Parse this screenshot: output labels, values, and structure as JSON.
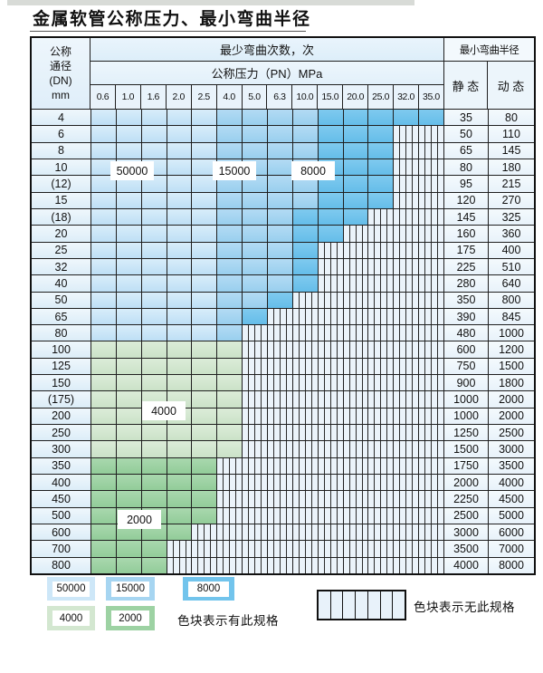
{
  "title": "金属软管公称压力、最小弯曲半径",
  "table": {
    "header": {
      "dn_label_lines": [
        "公称",
        "通径",
        "(DN)",
        "mm"
      ],
      "bend_cycles_label": "最少弯曲次数，次",
      "pressure_label": "公称压力（PN）MPa",
      "pressures": [
        "0.6",
        "1.0",
        "1.6",
        "2.0",
        "2.5",
        "4.0",
        "5.0",
        "6.3",
        "10.0",
        "15.0",
        "20.0",
        "25.0",
        "32.0",
        "35.0"
      ],
      "radius_label": "最小弯曲半径",
      "static_label": "静 态",
      "dynamic_label": "动 态"
    },
    "cell_legend_note": "L=50000 cycles, M=15000 cycles, D=8000 cycles, A=4000 cycles, B=2000 cycles, S=no specification (striped)",
    "rows": [
      {
        "dn": "4",
        "cells": "LLLLLMMMMDDDDD",
        "static": "35",
        "dynamic": "80"
      },
      {
        "dn": "6",
        "cells": "LLLLLMMMMDDDSS",
        "static": "50",
        "dynamic": "110"
      },
      {
        "dn": "8",
        "cells": "LLLLLMMMMDDDSS",
        "static": "65",
        "dynamic": "145"
      },
      {
        "dn": "10",
        "cells": "LLLLLMMMMDDDSS",
        "static": "80",
        "dynamic": "180"
      },
      {
        "dn": "(12)",
        "cells": "LLLLLMMMMDDDSS",
        "static": "95",
        "dynamic": "215"
      },
      {
        "dn": "15",
        "cells": "LLLLLMMMMDDDSS",
        "static": "120",
        "dynamic": "270"
      },
      {
        "dn": "(18)",
        "cells": "LLLLLMMMDDDSSS",
        "static": "145",
        "dynamic": "325"
      },
      {
        "dn": "20",
        "cells": "LLLLLMMMDDSSSS",
        "static": "160",
        "dynamic": "360"
      },
      {
        "dn": "25",
        "cells": "LLLLLMMMDSSSSS",
        "static": "175",
        "dynamic": "400"
      },
      {
        "dn": "32",
        "cells": "LLLLLMMMDSSSSS",
        "static": "225",
        "dynamic": "510"
      },
      {
        "dn": "40",
        "cells": "LLLLLMMMDSSSSS",
        "static": "280",
        "dynamic": "640"
      },
      {
        "dn": "50",
        "cells": "LLLLLMMDSSSSSS",
        "static": "350",
        "dynamic": "800"
      },
      {
        "dn": "65",
        "cells": "LLLLLMDSSSSSSS",
        "static": "390",
        "dynamic": "845"
      },
      {
        "dn": "80",
        "cells": "LLLLLMSSSSSSSS",
        "static": "480",
        "dynamic": "1000"
      },
      {
        "dn": "100",
        "cells": "AAAAAASSSSSSSS",
        "static": "600",
        "dynamic": "1200"
      },
      {
        "dn": "125",
        "cells": "AAAAAASSSSSSSS",
        "static": "750",
        "dynamic": "1500"
      },
      {
        "dn": "150",
        "cells": "AAAAAASSSSSSSS",
        "static": "900",
        "dynamic": "1800"
      },
      {
        "dn": "(175)",
        "cells": "AAAAAASSSSSSSS",
        "static": "1000",
        "dynamic": "2000"
      },
      {
        "dn": "200",
        "cells": "AAAAAASSSSSSSS",
        "static": "1000",
        "dynamic": "2000"
      },
      {
        "dn": "250",
        "cells": "AAAAAASSSSSSSS",
        "static": "1250",
        "dynamic": "2500"
      },
      {
        "dn": "300",
        "cells": "AAAAAASSSSSSSS",
        "static": "1500",
        "dynamic": "3000"
      },
      {
        "dn": "350",
        "cells": "BBBBBSSSSSSSSS",
        "static": "1750",
        "dynamic": "3500"
      },
      {
        "dn": "400",
        "cells": "BBBBBSSSSSSSSS",
        "static": "2000",
        "dynamic": "4000"
      },
      {
        "dn": "450",
        "cells": "BBBBBSSSSSSSSS",
        "static": "2250",
        "dynamic": "4500"
      },
      {
        "dn": "500",
        "cells": "BBBBBSSSSSSSSS",
        "static": "2500",
        "dynamic": "5000"
      },
      {
        "dn": "600",
        "cells": "BBBBSSSSSSSSSS",
        "static": "3000",
        "dynamic": "6000"
      },
      {
        "dn": "700",
        "cells": "BBBSSSSSSSSSSS",
        "static": "3500",
        "dynamic": "7000"
      },
      {
        "dn": "800",
        "cells": "BBBSSSSSSSSSSS",
        "static": "4000",
        "dynamic": "8000"
      }
    ],
    "region_labels": [
      {
        "text": "50000"
      },
      {
        "text": "15000"
      },
      {
        "text": "8000"
      },
      {
        "text": "4000"
      },
      {
        "text": "2000"
      }
    ]
  },
  "legend": {
    "blocks": [
      {
        "value": "50000",
        "color": "#cde7f8"
      },
      {
        "value": "15000",
        "color": "#a6d5f1"
      },
      {
        "value": "8000",
        "color": "#72c4ec"
      },
      {
        "value": "4000",
        "color": "#d3e7d0"
      },
      {
        "value": "2000",
        "color": "#9dd2a3"
      }
    ],
    "has_spec_text": "色块表示有此规格",
    "no_spec_text": "色块表示无此规格"
  },
  "colors": {
    "blue_50000": "#cde7f8",
    "blue_15000": "#a6d5f1",
    "blue_8000": "#72c4ec",
    "green_4000": "#d3e7d0",
    "green_2000": "#9dd2a3",
    "stripe_bg": "#ebf3fa",
    "grid_line": "#1f1f1f"
  }
}
